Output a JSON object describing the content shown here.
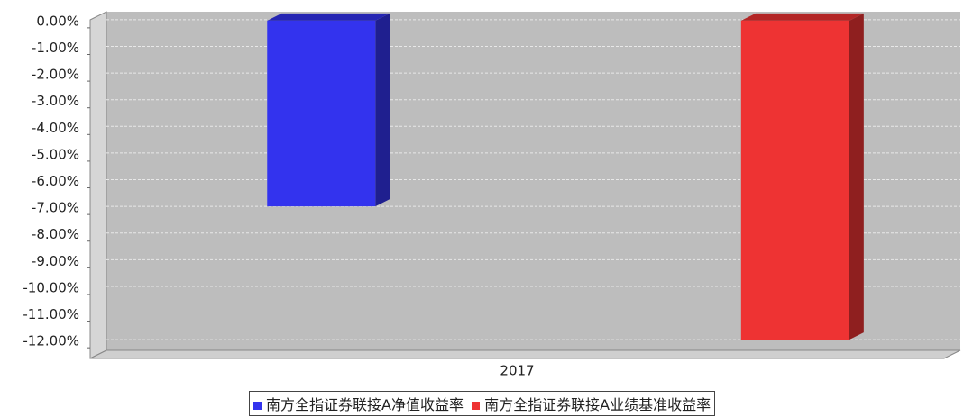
{
  "chart_data": {
    "type": "bar3d",
    "categories": [
      "2017"
    ],
    "series": [
      {
        "name": "南方全指证券联接A净值收益率",
        "color": "#3333ee",
        "values": [
          -7.0
        ]
      },
      {
        "name": "南方全指证券联接A业绩基准收益率",
        "color": "#ee3333",
        "values": [
          -12.0
        ]
      }
    ],
    "ylim": [
      -12.4,
      0.3
    ],
    "yticks": [
      {
        "value": 0,
        "label": "0.00%"
      },
      {
        "value": -1,
        "label": "-1.00%"
      },
      {
        "value": -2,
        "label": "-2.00%"
      },
      {
        "value": -3,
        "label": "-3.00%"
      },
      {
        "value": -4,
        "label": "-4.00%"
      },
      {
        "value": -5,
        "label": "-5.00%"
      },
      {
        "value": -6,
        "label": "-6.00%"
      },
      {
        "value": -7,
        "label": "-7.00%"
      },
      {
        "value": -8,
        "label": "-8.00%"
      },
      {
        "value": -9,
        "label": "-9.00%"
      },
      {
        "value": -10,
        "label": "-10.00%"
      },
      {
        "value": -11,
        "label": "-11.00%"
      },
      {
        "value": -12,
        "label": "-12.00%"
      }
    ],
    "grid": true
  }
}
